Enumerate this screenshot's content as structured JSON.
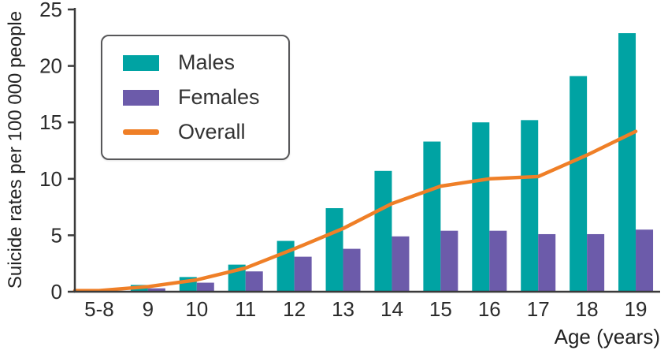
{
  "chart_data": {
    "type": "bar",
    "title": "",
    "categories": [
      "5-8",
      "9",
      "10",
      "11",
      "12",
      "13",
      "14",
      "15",
      "16",
      "17",
      "18",
      "19"
    ],
    "series": [
      {
        "name": "Males",
        "type": "bar",
        "color": "#00a3a3",
        "values": [
          0.1,
          0.6,
          1.3,
          2.4,
          4.5,
          7.4,
          10.7,
          13.3,
          15.0,
          15.2,
          19.1,
          22.9
        ]
      },
      {
        "name": "Females",
        "type": "bar",
        "color": "#6c5baa",
        "values": [
          0.05,
          0.3,
          0.8,
          1.8,
          3.1,
          3.8,
          4.9,
          5.4,
          5.4,
          5.1,
          5.1,
          5.5
        ]
      },
      {
        "name": "Overall",
        "type": "line",
        "color": "#ef7f27",
        "values": [
          0.1,
          0.45,
          1.05,
          2.1,
          3.8,
          5.6,
          7.8,
          9.35,
          10.0,
          10.2,
          12.1,
          14.2
        ]
      }
    ],
    "xlabel": "Age (years)",
    "ylabel": "Suicide rates per 100 000 people",
    "ylim": [
      0,
      25
    ],
    "yticks": [
      0,
      5,
      10,
      15,
      20,
      25
    ],
    "legend_position": "top-left",
    "grid": false,
    "axis_color": "#3a3a3a"
  }
}
